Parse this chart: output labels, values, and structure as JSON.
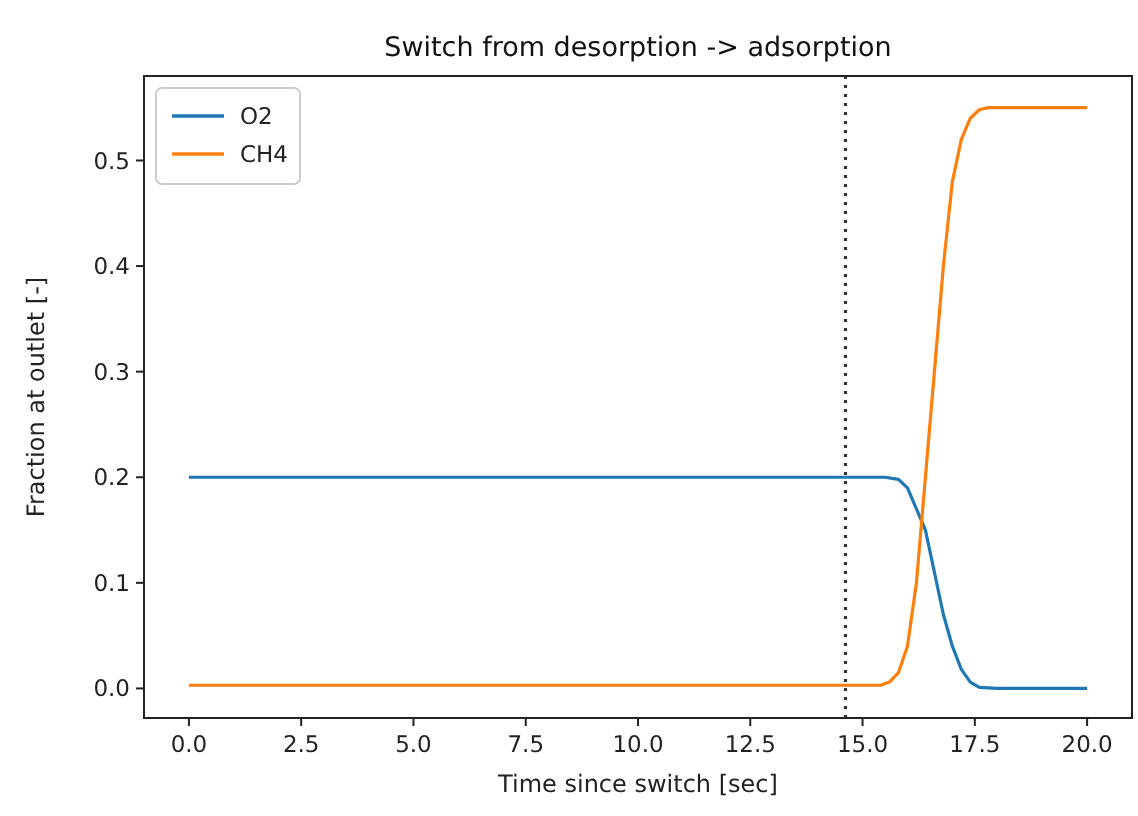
{
  "chart_data": {
    "type": "line",
    "title": "Switch from desorption -> adsorption",
    "xlabel": "Time since switch [sec]",
    "ylabel": "Fraction at outlet [-]",
    "xlim": [
      -1.0,
      21.0
    ],
    "xticks": [
      {
        "value": 0,
        "label": "0.0"
      },
      2.5,
      {
        "value": 5,
        "label": "5.0"
      },
      7.5,
      {
        "value": 10,
        "label": "10.0"
      },
      12.5,
      {
        "value": 15,
        "label": "15.0"
      },
      17.5,
      {
        "value": 20,
        "label": "20.0"
      }
    ],
    "ylim": [
      -0.028,
      0.58
    ],
    "yticks": [
      {
        "value": 0,
        "label": "0.0"
      },
      0.1,
      0.2,
      0.3,
      0.4,
      0.5
    ],
    "series": [
      {
        "name": "O2",
        "color": "#1f77b4",
        "x": [
          0,
          15.5,
          15.8,
          16.0,
          16.2,
          16.4,
          16.6,
          16.8,
          17.0,
          17.2,
          17.4,
          17.6,
          18.0,
          20.0
        ],
        "values": [
          0.2,
          0.2,
          0.198,
          0.19,
          0.17,
          0.15,
          0.11,
          0.07,
          0.04,
          0.018,
          0.006,
          0.001,
          0,
          0
        ]
      },
      {
        "name": "CH4",
        "color": "#ff7f0e",
        "x": [
          0,
          15.4,
          15.6,
          15.8,
          16.0,
          16.2,
          16.4,
          16.6,
          16.8,
          17.0,
          17.2,
          17.4,
          17.6,
          17.8,
          20.0
        ],
        "values": [
          0.003,
          0.003,
          0.006,
          0.015,
          0.04,
          0.1,
          0.2,
          0.3,
          0.4,
          0.48,
          0.52,
          0.54,
          0.548,
          0.55,
          0.55
        ]
      }
    ],
    "ref_lines": [
      {
        "axis": "x",
        "value": 14.62,
        "color": "#333333",
        "line_style": "dotted"
      }
    ],
    "legend": "top left",
    "grid": false,
    "marker": "none",
    "line_style": "solid"
  }
}
